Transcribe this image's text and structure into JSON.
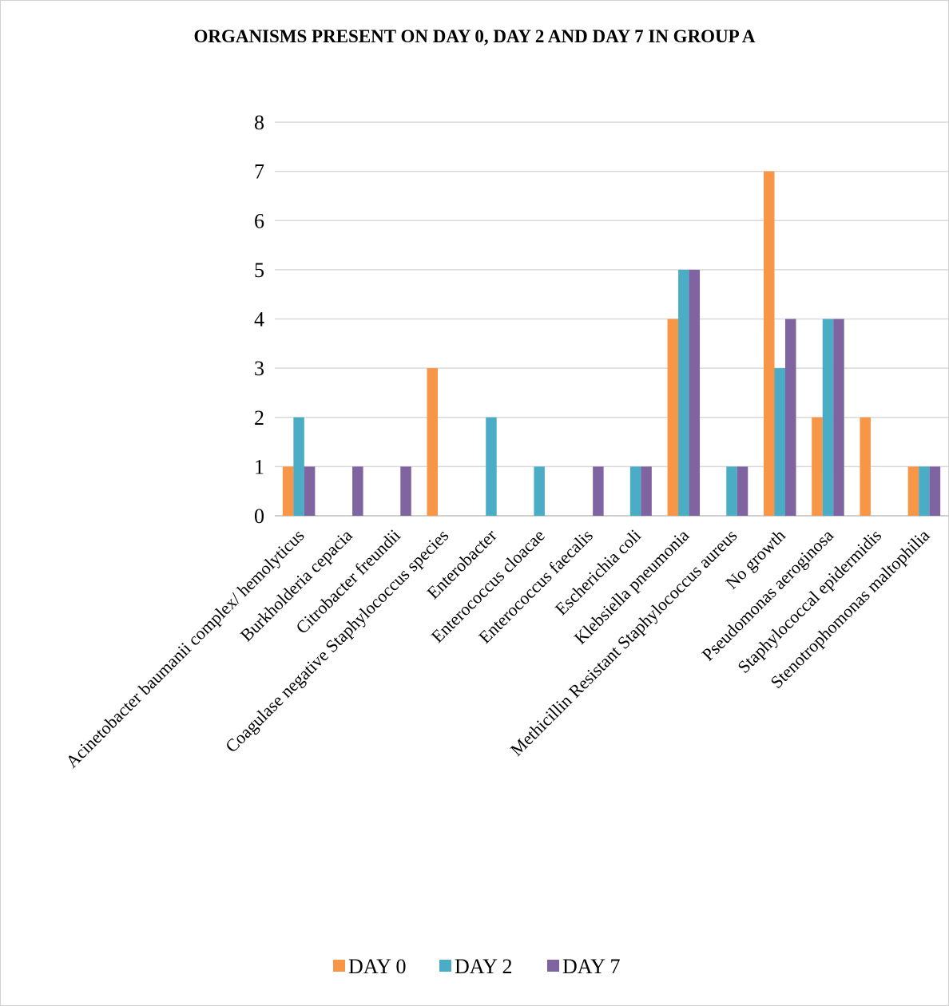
{
  "chart_data": {
    "type": "bar",
    "title": "ORGANISMS PRESENT ON DAY 0, DAY 2 AND DAY 7 IN GROUP A",
    "xlabel": "",
    "ylabel": "",
    "ylim": [
      0,
      8
    ],
    "yticks": [
      0,
      1,
      2,
      3,
      4,
      5,
      6,
      7,
      8
    ],
    "grid": true,
    "legend_position": "bottom",
    "categories": [
      "Acinetobacter baumanii complex/ hemolyticus",
      "Burkholderia cepacia",
      "Citrobacter freundii",
      "Coagulase negative Staphylococcus species",
      "Enterobacter",
      "Enterococcus cloacae",
      "Enterococcus faecalis",
      "Escherichia coli",
      "Klebsiella pneumonia",
      "Methicillin Resistant Staphylococcus aureus",
      "No growth",
      "Pseudomonas aeroginosa",
      "Staphylococcal epidermidis",
      "Stenotrophomonas maltophilia"
    ],
    "series": [
      {
        "name": "DAY 0",
        "color": "#F79646",
        "values": [
          1,
          0,
          0,
          3,
          0,
          0,
          0,
          0,
          4,
          0,
          7,
          2,
          2,
          1
        ]
      },
      {
        "name": "DAY 2",
        "color": "#4BACC6",
        "values": [
          2,
          0,
          0,
          0,
          2,
          1,
          0,
          1,
          5,
          1,
          3,
          4,
          0,
          1
        ]
      },
      {
        "name": "DAY 7",
        "color": "#8064A2",
        "values": [
          1,
          1,
          1,
          0,
          0,
          0,
          1,
          1,
          5,
          1,
          4,
          4,
          0,
          1
        ]
      }
    ]
  }
}
